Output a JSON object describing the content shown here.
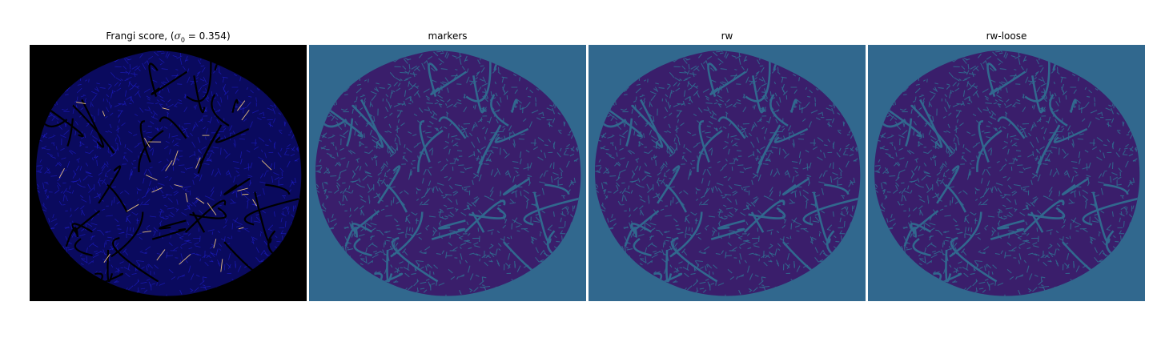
{
  "figure": {
    "panels": [
      {
        "id": "frangi",
        "title_prefix": "Frangi score, (",
        "title_symbol": "σ",
        "title_subscript": "0",
        "title_suffix": " = 0.354)",
        "background_color": "#000000",
        "blob_color": "#0a0a5e",
        "stroke_color": "#1e1ec8",
        "highlight_color": "#e8c080"
      },
      {
        "id": "markers",
        "title": "markers",
        "background_color": "#31688e",
        "blob_color": "#3a1e6b",
        "stroke_color": "#31688e"
      },
      {
        "id": "rw",
        "title": "rw",
        "background_color": "#31688e",
        "blob_color": "#3a1e6b",
        "stroke_color": "#31688e"
      },
      {
        "id": "rw-loose",
        "title": "rw-loose",
        "background_color": "#31688e",
        "blob_color": "#3a1e6b",
        "stroke_color": "#31688e"
      }
    ]
  }
}
